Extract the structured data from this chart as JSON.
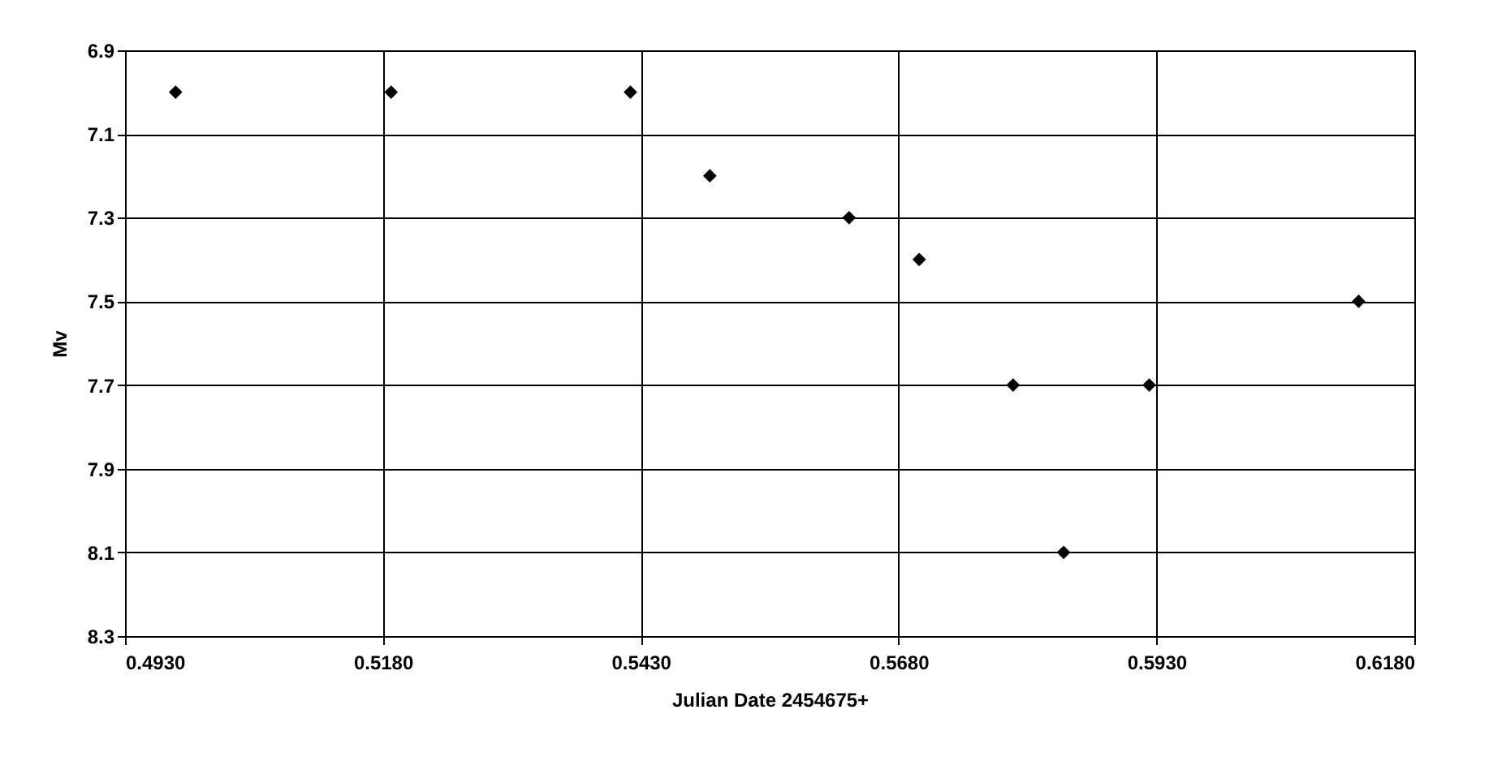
{
  "chart_data": {
    "type": "scatter",
    "xlabel": "Julian Date  2454675+",
    "ylabel": "Mv",
    "x": [
      0.4979,
      0.5188,
      0.542,
      0.5497,
      0.5632,
      0.57,
      0.5791,
      0.584,
      0.5923,
      0.6126
    ],
    "series": [
      {
        "color": "#000000",
        "values": [
          7.0,
          7.0,
          7.0,
          7.2,
          7.3,
          7.4,
          7.7,
          8.1,
          7.7,
          7.5
        ]
      }
    ],
    "xlim": [
      0.493,
      0.618
    ],
    "xticks": [
      {
        "value": 0.493,
        "label": "0.4930"
      },
      {
        "value": 0.518,
        "label": "0.5180"
      },
      {
        "value": 0.543,
        "label": "0.5430"
      },
      {
        "value": 0.568,
        "label": "0.5680"
      },
      {
        "value": 0.593,
        "label": "0.5930"
      },
      {
        "value": 0.618,
        "label": "0.6180"
      }
    ],
    "ylim": [
      8.3,
      6.9
    ],
    "yticks": [
      6.9,
      7.1,
      7.3,
      7.5,
      7.7,
      7.9,
      8.1,
      8.3
    ],
    "grid": true,
    "marker": "diamond"
  }
}
